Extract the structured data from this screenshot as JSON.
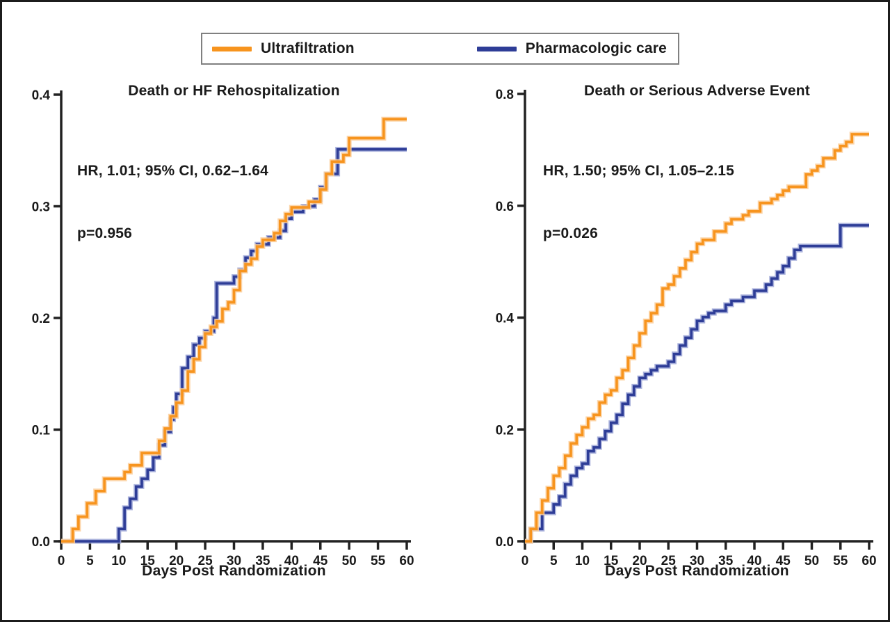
{
  "figure": {
    "background": "#ffffff",
    "frame_color": "#1c1c1c",
    "axis_color": "#222222",
    "text_color": "#1a1a1a"
  },
  "legend": {
    "border_color": "#808080",
    "items": [
      {
        "label": "Ultrafiltration",
        "color": "#F7941E"
      },
      {
        "label": "Pharmacologic care",
        "color": "#2E3D97"
      }
    ]
  },
  "chart_data": [
    {
      "type": "line",
      "variant": "step-after",
      "title": "Death or HF Rehospitalization",
      "annotation_line1": "HR, 1.01; 95% CI, 0.62–1.64",
      "annotation_line2": "p=0.956",
      "xlabel": "Days Post Randomization",
      "ylabel": "",
      "xlim": [
        0,
        60
      ],
      "ylim": [
        0,
        0.4
      ],
      "xticks": [
        0,
        5,
        10,
        15,
        20,
        25,
        30,
        35,
        40,
        45,
        50,
        55,
        60
      ],
      "xtick_labels": [
        "0",
        "5",
        "10",
        "15",
        "20",
        "25",
        "30",
        "35",
        "40",
        "45",
        "50",
        "55",
        "60"
      ],
      "yticks": [
        0.0,
        0.1,
        0.2,
        0.3,
        0.4
      ],
      "ytick_labels": [
        "0.0",
        "0.1",
        "0.2",
        "0.3",
        "0.4"
      ],
      "grid": false,
      "legend_position": "top-center-shared",
      "series": [
        {
          "name": "Pharmacologic care",
          "color": "#2E3D97",
          "halo": "#9BA5D6",
          "points": [
            [
              0,
              0
            ],
            [
              10,
              0.011
            ],
            [
              11,
              0.03
            ],
            [
              12,
              0.038
            ],
            [
              13,
              0.049
            ],
            [
              14,
              0.056
            ],
            [
              15,
              0.064
            ],
            [
              16,
              0.075
            ],
            [
              17,
              0.086
            ],
            [
              18,
              0.098
            ],
            [
              19,
              0.109
            ],
            [
              19.5,
              0.12
            ],
            [
              20,
              0.132
            ],
            [
              21,
              0.155
            ],
            [
              22,
              0.165
            ],
            [
              23,
              0.176
            ],
            [
              24,
              0.182
            ],
            [
              25,
              0.188
            ],
            [
              26.5,
              0.2
            ],
            [
              27,
              0.231
            ],
            [
              30,
              0.237
            ],
            [
              31,
              0.243
            ],
            [
              32,
              0.254
            ],
            [
              33,
              0.26
            ],
            [
              34,
              0.266
            ],
            [
              36,
              0.272
            ],
            [
              38,
              0.278
            ],
            [
              39,
              0.289
            ],
            [
              40,
              0.295
            ],
            [
              42,
              0.3
            ],
            [
              44,
              0.306
            ],
            [
              45,
              0.317
            ],
            [
              46,
              0.329
            ],
            [
              48,
              0.351
            ],
            [
              60,
              0.351
            ]
          ]
        },
        {
          "name": "Ultrafiltration",
          "color": "#F7941E",
          "halo": "#FBCE9A",
          "points": [
            [
              0,
              0
            ],
            [
              2,
              0.011
            ],
            [
              3,
              0.022
            ],
            [
              4.5,
              0.034
            ],
            [
              6,
              0.045
            ],
            [
              7.5,
              0.056
            ],
            [
              11,
              0.062
            ],
            [
              12,
              0.068
            ],
            [
              14,
              0.079
            ],
            [
              17,
              0.09
            ],
            [
              18,
              0.101
            ],
            [
              19,
              0.112
            ],
            [
              20,
              0.124
            ],
            [
              21,
              0.135
            ],
            [
              22,
              0.152
            ],
            [
              23,
              0.163
            ],
            [
              24,
              0.174
            ],
            [
              25,
              0.186
            ],
            [
              26,
              0.192
            ],
            [
              27,
              0.197
            ],
            [
              28,
              0.208
            ],
            [
              29,
              0.214
            ],
            [
              30,
              0.225
            ],
            [
              31,
              0.242
            ],
            [
              32,
              0.248
            ],
            [
              33,
              0.253
            ],
            [
              34,
              0.264
            ],
            [
              35,
              0.27
            ],
            [
              37,
              0.276
            ],
            [
              38,
              0.287
            ],
            [
              39,
              0.293
            ],
            [
              40,
              0.299
            ],
            [
              43,
              0.304
            ],
            [
              45,
              0.315
            ],
            [
              46,
              0.329
            ],
            [
              47,
              0.34
            ],
            [
              49,
              0.346
            ],
            [
              50,
              0.361
            ],
            [
              56,
              0.378
            ],
            [
              60,
              0.378
            ]
          ]
        }
      ]
    },
    {
      "type": "line",
      "variant": "step-after",
      "title": "Death or Serious Adverse Event",
      "annotation_line1": "HR, 1.50; 95% CI, 1.05–2.15",
      "annotation_line2": "p=0.026",
      "xlabel": "Days Post Randomization",
      "ylabel": "",
      "xlim": [
        0,
        60
      ],
      "ylim": [
        0,
        0.8
      ],
      "xticks": [
        0,
        5,
        10,
        15,
        20,
        25,
        30,
        35,
        40,
        45,
        50,
        55,
        60
      ],
      "xtick_labels": [
        "0",
        "5",
        "10",
        "15",
        "20",
        "25",
        "30",
        "35",
        "40",
        "45",
        "50",
        "55",
        "60"
      ],
      "yticks": [
        0.0,
        0.2,
        0.4,
        0.6,
        0.8
      ],
      "ytick_labels": [
        "0.0",
        "0.2",
        "0.4",
        "0.6",
        "0.8"
      ],
      "grid": false,
      "legend_position": "top-center-shared",
      "series": [
        {
          "name": "Pharmacologic care",
          "color": "#2E3D97",
          "halo": "#9BA5D6",
          "points": [
            [
              0,
              0
            ],
            [
              1,
              0.022
            ],
            [
              3,
              0.051
            ],
            [
              5,
              0.066
            ],
            [
              6,
              0.08
            ],
            [
              7,
              0.102
            ],
            [
              8,
              0.117
            ],
            [
              9,
              0.131
            ],
            [
              10,
              0.139
            ],
            [
              11,
              0.161
            ],
            [
              12,
              0.168
            ],
            [
              13,
              0.183
            ],
            [
              14,
              0.197
            ],
            [
              15,
              0.212
            ],
            [
              16,
              0.226
            ],
            [
              17,
              0.246
            ],
            [
              18,
              0.262
            ],
            [
              19,
              0.277
            ],
            [
              20,
              0.292
            ],
            [
              21,
              0.299
            ],
            [
              22,
              0.306
            ],
            [
              23,
              0.313
            ],
            [
              25,
              0.321
            ],
            [
              26,
              0.335
            ],
            [
              27,
              0.35
            ],
            [
              28,
              0.364
            ],
            [
              29,
              0.379
            ],
            [
              30,
              0.394
            ],
            [
              31,
              0.401
            ],
            [
              32,
              0.408
            ],
            [
              33,
              0.412
            ],
            [
              35,
              0.423
            ],
            [
              36,
              0.43
            ],
            [
              38,
              0.437
            ],
            [
              40,
              0.448
            ],
            [
              42,
              0.459
            ],
            [
              43,
              0.47
            ],
            [
              44,
              0.481
            ],
            [
              45,
              0.492
            ],
            [
              46,
              0.506
            ],
            [
              47,
              0.521
            ],
            [
              48,
              0.528
            ],
            [
              55,
              0.565
            ],
            [
              60,
              0.565
            ]
          ]
        },
        {
          "name": "Ultrafiltration",
          "color": "#F7941E",
          "halo": "#FBCE9A",
          "points": [
            [
              0,
              0
            ],
            [
              1,
              0.022
            ],
            [
              2,
              0.051
            ],
            [
              3,
              0.073
            ],
            [
              4,
              0.095
            ],
            [
              5,
              0.117
            ],
            [
              6,
              0.131
            ],
            [
              7,
              0.153
            ],
            [
              8,
              0.175
            ],
            [
              9,
              0.19
            ],
            [
              10,
              0.204
            ],
            [
              11,
              0.219
            ],
            [
              12,
              0.226
            ],
            [
              13,
              0.248
            ],
            [
              14,
              0.262
            ],
            [
              15,
              0.27
            ],
            [
              16,
              0.292
            ],
            [
              17,
              0.306
            ],
            [
              18,
              0.328
            ],
            [
              19,
              0.35
            ],
            [
              20,
              0.372
            ],
            [
              21,
              0.394
            ],
            [
              22,
              0.408
            ],
            [
              23,
              0.423
            ],
            [
              24,
              0.452
            ],
            [
              25,
              0.459
            ],
            [
              26,
              0.474
            ],
            [
              27,
              0.488
            ],
            [
              28,
              0.503
            ],
            [
              29,
              0.517
            ],
            [
              30,
              0.532
            ],
            [
              31,
              0.539
            ],
            [
              33,
              0.554
            ],
            [
              35,
              0.568
            ],
            [
              36,
              0.576
            ],
            [
              38,
              0.583
            ],
            [
              39,
              0.59
            ],
            [
              41,
              0.605
            ],
            [
              43,
              0.612
            ],
            [
              44,
              0.619
            ],
            [
              45,
              0.627
            ],
            [
              46,
              0.634
            ],
            [
              49,
              0.656
            ],
            [
              50,
              0.663
            ],
            [
              51,
              0.671
            ],
            [
              52,
              0.685
            ],
            [
              54,
              0.699
            ],
            [
              55,
              0.707
            ],
            [
              56,
              0.714
            ],
            [
              57,
              0.728
            ],
            [
              60,
              0.728
            ]
          ]
        }
      ]
    }
  ]
}
